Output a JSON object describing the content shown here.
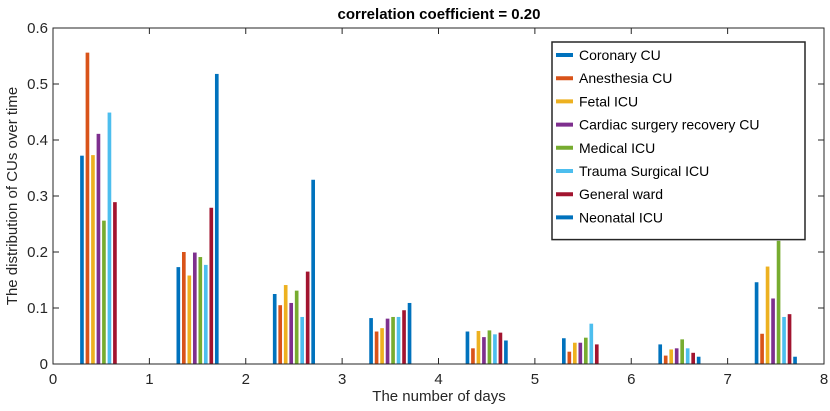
{
  "chart_data": {
    "type": "bar",
    "title": "correlation coefficient = 0.20",
    "xlabel": "The number of days",
    "ylabel": "The distribution of  CUs over time",
    "xlim": [
      0,
      8
    ],
    "ylim": [
      0,
      0.6
    ],
    "xticks": [
      "0",
      "1",
      "2",
      "3",
      "4",
      "5",
      "6",
      "7",
      "8"
    ],
    "yticks": [
      "0",
      "0.1",
      "0.2",
      "0.3",
      "0.4",
      "0.5",
      "0.6"
    ],
    "categories": [
      1,
      2,
      3,
      4,
      5,
      6,
      7,
      8
    ],
    "legend_position": "top-right",
    "series": [
      {
        "name": "Coronary CU",
        "color": "#0072BD",
        "values": [
          0.372,
          0.173,
          0.125,
          0.082,
          0.058,
          0.046,
          0.035,
          0.146
        ]
      },
      {
        "name": "Anesthesia CU",
        "color": "#D95319",
        "values": [
          0.556,
          0.2,
          0.105,
          0.058,
          0.028,
          0.022,
          0.015,
          0.054
        ]
      },
      {
        "name": "Fetal ICU",
        "color": "#EDB120",
        "values": [
          0.373,
          0.158,
          0.141,
          0.064,
          0.059,
          0.038,
          0.026,
          0.174
        ]
      },
      {
        "name": "Cardiac surgery recovery CU",
        "color": "#7E2F8E",
        "values": [
          0.411,
          0.199,
          0.109,
          0.081,
          0.048,
          0.038,
          0.028,
          0.117
        ]
      },
      {
        "name": "Medical ICU",
        "color": "#77AC30",
        "values": [
          0.256,
          0.191,
          0.131,
          0.084,
          0.06,
          0.047,
          0.044,
          0.22
        ]
      },
      {
        "name": "Trauma Surgical ICU",
        "color": "#4DBEEE",
        "values": [
          0.449,
          0.177,
          0.084,
          0.084,
          0.053,
          0.072,
          0.028,
          0.084
        ]
      },
      {
        "name": "General ward",
        "color": "#A2142F",
        "values": [
          0.289,
          0.279,
          0.165,
          0.096,
          0.056,
          0.035,
          0.02,
          0.089
        ]
      },
      {
        "name": "Neonatal ICU",
        "color": "#0072BD",
        "values": [
          null,
          0.518,
          0.329,
          0.109,
          0.042,
          null,
          0.013,
          0.013
        ]
      }
    ]
  }
}
